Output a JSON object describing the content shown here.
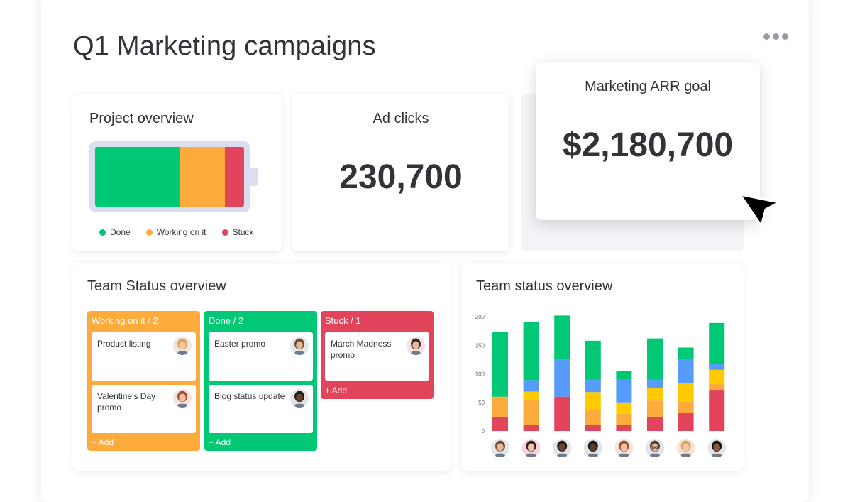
{
  "board": {
    "title": "Q1 Marketing campaigns"
  },
  "project_overview": {
    "title": "Project overview",
    "segments": [
      {
        "label": "Done",
        "share": 0.567,
        "color": "#00c875"
      },
      {
        "label": "Working on it",
        "share": 0.305,
        "color": "#fdab3d"
      },
      {
        "label": "Stuck",
        "share": 0.128,
        "color": "#e2445c"
      }
    ]
  },
  "ad_clicks": {
    "title": "Ad clicks",
    "value": "230,700"
  },
  "arr_goal": {
    "title": "Marketing ARR goal",
    "value": "$2,180,700"
  },
  "team_status": {
    "title": "Team Status overview",
    "columns": [
      {
        "header": "Working on it / 2",
        "color": "#fdab3d",
        "add": "+ Add",
        "tasks": [
          {
            "name": "Product listing",
            "avatar": "avatar-woman-blonde"
          },
          {
            "name": "Valentine's Day promo",
            "avatar": "avatar-woman-red-hair"
          }
        ]
      },
      {
        "header": "Done / 2",
        "color": "#00c875",
        "add": "+ Add",
        "tasks": [
          {
            "name": "Easter promo",
            "avatar": "avatar-man-beard"
          },
          {
            "name": "Blog status update",
            "avatar": "avatar-man-dark"
          }
        ]
      },
      {
        "header": "Stuck / 1",
        "color": "#e2445c",
        "add": "+ Add",
        "tasks": [
          {
            "name": "March Madness promo",
            "avatar": "avatar-woman-dark-hair"
          }
        ]
      }
    ]
  },
  "chart_data": {
    "type": "bar",
    "stacked": true,
    "title": "Team status overview",
    "xlabel": "",
    "ylabel": "",
    "ylim": [
      0,
      200
    ],
    "yticks": [
      0,
      50,
      100,
      150,
      200
    ],
    "categories": [
      "person-1",
      "person-2",
      "person-3",
      "person-4",
      "person-5",
      "person-6",
      "person-7",
      "person-8"
    ],
    "series": [
      {
        "color": "#e2445c",
        "values": [
          25,
          10,
          60,
          10,
          10,
          25,
          32,
          72
        ]
      },
      {
        "color": "#fdab3d",
        "values": [
          35,
          44,
          0,
          28,
          20,
          28,
          20,
          10
        ]
      },
      {
        "color": "#ffcb00",
        "values": [
          0,
          15,
          0,
          30,
          20,
          22,
          32,
          25
        ]
      },
      {
        "color": "#579bfc",
        "values": [
          0,
          20,
          65,
          22,
          40,
          15,
          42,
          10
        ]
      },
      {
        "color": "#00c875",
        "values": [
          113,
          102,
          77,
          68,
          15,
          72,
          20,
          72
        ]
      }
    ],
    "grid": false,
    "legend": "none"
  },
  "chart_avatars": [
    "avatar-man-beard",
    "avatar-woman-pink",
    "avatar-man-dark",
    "avatar-man-curly",
    "avatar-woman-red-hair",
    "avatar-man-glasses",
    "avatar-woman-blonde",
    "avatar-man-black-hair"
  ]
}
